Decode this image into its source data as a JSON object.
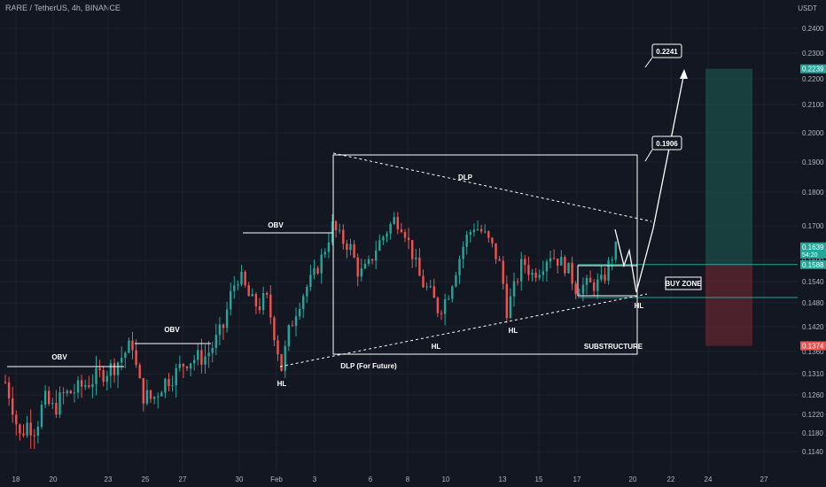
{
  "header": {
    "symbol_line": "RARE / TetherUS, 4h, BINANCE",
    "unit": "USDT"
  },
  "colors": {
    "background": "#131722",
    "up": "#26a69a",
    "down": "#ef5350",
    "grid": "#1e222d",
    "axis_text": "#b2b5be",
    "white": "#ffffff",
    "target_zone": "#1f5f55",
    "stop_zone": "#5b2430",
    "level_line": "#26a69a"
  },
  "chart_data": {
    "type": "candlestick",
    "ylim": [
      0.111,
      0.244
    ],
    "y_ticks": [
      "0.2400",
      "0.2300",
      "0.2200",
      "0.2100",
      "0.2000",
      "0.1900",
      "0.1800",
      "0.1700",
      "0.1600",
      "0.1540",
      "0.1480",
      "0.1420",
      "0.1360",
      "0.1310",
      "0.1260",
      "0.1220",
      "0.1180",
      "0.1140"
    ],
    "x_ticks": [
      "18",
      "20",
      "23",
      "25",
      "27",
      "30",
      "Feb",
      "3",
      "6",
      "8",
      "10",
      "13",
      "15",
      "17",
      "20",
      "22",
      "24",
      "27"
    ],
    "price_labels": [
      {
        "text": "0.2239",
        "value": 0.2239,
        "color": "#26a69a"
      },
      {
        "text": "0.1639",
        "sub": "54:20",
        "value": 0.1639,
        "color": "#26a69a"
      },
      {
        "text": "0.1588",
        "value": 0.1588,
        "color": "#26a69a"
      },
      {
        "text": "0.1374",
        "value": 0.1374,
        "color": "#ef5350"
      }
    ],
    "annotations": {
      "obv": [
        "OBV",
        "OBV",
        "OBV"
      ],
      "dlp": "DLP",
      "dlp_future": "DLP (For Future)",
      "hl": [
        "HL",
        "HL",
        "HL",
        "HL"
      ],
      "substructure": "SUBSTRUCTURE",
      "buy_zone": "BUY ZONE",
      "targets": [
        "0.1906",
        "0.2241"
      ]
    },
    "legend": "none",
    "grid": true
  }
}
